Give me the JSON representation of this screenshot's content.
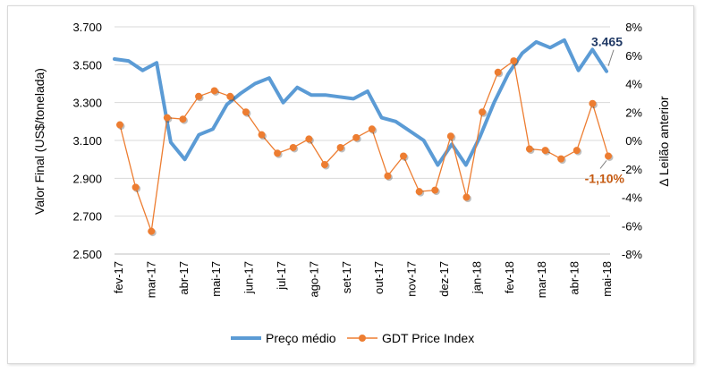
{
  "chart_data": {
    "type": "line",
    "title": "",
    "ylabel_left": "Valor Final (US$/tonelada)",
    "ylabel_right": "Δ Leilão anterior",
    "ylim_left": [
      2500,
      3700
    ],
    "ylim_right": [
      -8,
      8
    ],
    "yticks_left": [
      "2.500",
      "2.700",
      "2.900",
      "3.100",
      "3.300",
      "3.500",
      "3.700"
    ],
    "yticks_left_values": [
      2500,
      2700,
      2900,
      3100,
      3300,
      3500,
      3700
    ],
    "yticks_right": [
      "-8%",
      "-6%",
      "-4%",
      "-2%",
      "0%",
      "2%",
      "4%",
      "6%",
      "8%"
    ],
    "yticks_right_values": [
      -8,
      -6,
      -4,
      -2,
      0,
      2,
      4,
      6,
      8
    ],
    "month_labels": [
      "fev-17",
      "mar-17",
      "abr-17",
      "mai-17",
      "jun-17",
      "jul-17",
      "ago-17",
      "set-17",
      "out-17",
      "nov-17",
      "dez-17",
      "jan-18",
      "fev-18",
      "mar-18",
      "abr-18",
      "mai-18"
    ],
    "month_label_positions": [
      0,
      2,
      4,
      6,
      8,
      10,
      12,
      14,
      16,
      18,
      20,
      22,
      24,
      26,
      28,
      30
    ],
    "series": [
      {
        "name": "Preço médio",
        "axis": "left",
        "color": "#5b9bd5",
        "values": [
          3530,
          3520,
          3470,
          3510,
          3090,
          3000,
          3130,
          3160,
          3290,
          3350,
          3400,
          3430,
          3300,
          3380,
          3340,
          3340,
          3330,
          3320,
          3360,
          3220,
          3200,
          3150,
          3100,
          2970,
          3080,
          2970,
          3120,
          3300,
          3450,
          3560,
          3620,
          3590,
          3630,
          3470,
          3580,
          3465
        ]
      },
      {
        "name": "GDT Price Index",
        "axis": "right",
        "color": "#ed7d31",
        "values": [
          1.1,
          -3.3,
          -6.4,
          1.6,
          1.5,
          3.1,
          3.5,
          3.1,
          2.0,
          0.4,
          -0.9,
          -0.5,
          0.1,
          -1.7,
          -0.5,
          0.2,
          0.8,
          -2.5,
          -1.1,
          -3.6,
          -3.5,
          0.3,
          -4.0,
          2.0,
          4.8,
          5.6,
          -0.6,
          -0.7,
          -1.3,
          -0.7,
          2.6,
          -1.1
        ]
      }
    ],
    "annotations": [
      {
        "text": "3.465",
        "series": "Preço médio",
        "color": "#1f3864"
      },
      {
        "text": "-1,10%",
        "series": "GDT Price Index",
        "color": "#c55a11"
      }
    ],
    "legend": [
      "Preço médio",
      "GDT Price Index"
    ],
    "legend_position": "bottom",
    "grid": true
  }
}
